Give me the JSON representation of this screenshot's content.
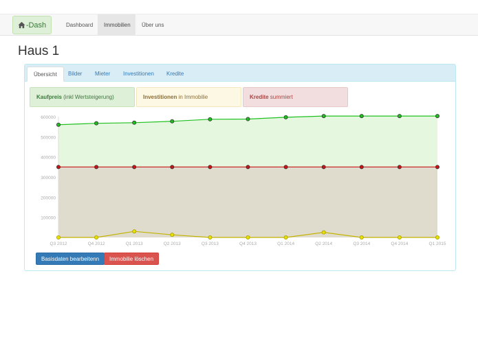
{
  "navbar": {
    "brand_icon": "home-icon",
    "brand_label": "-Dash",
    "links": [
      "Dashboard",
      "Immobilien",
      "Über uns"
    ],
    "active_link": "Immobilien"
  },
  "page": {
    "title": "Haus 1"
  },
  "tabs": [
    "Übersicht",
    "Bilder",
    "Mieter",
    "Investitionen",
    "Kredite"
  ],
  "active_tab": "Übersicht",
  "legend": {
    "kaufpreis": {
      "bold": "Kaufpreis",
      "rest": " (inkl Wertsteigerung)"
    },
    "investitionen": {
      "bold": "Investitionen",
      "rest": " in Immobilie"
    },
    "kredite": {
      "bold": "Kredite",
      "rest": " summiert"
    }
  },
  "buttons": {
    "edit": "Basisdaten bearbeitenn",
    "delete": "Immobilie löschen"
  },
  "colors": {
    "kaufpreis": "#1ec01e",
    "kredite": "#c81414",
    "investitionen": "#e8e000"
  },
  "chart_data": {
    "type": "area",
    "categories": [
      "Q3 2012",
      "Q4 2012",
      "Q1 2013",
      "Q2 2013",
      "Q3 2013",
      "Q4 2013",
      "Q1 2014",
      "Q2 2014",
      "Q3 2014",
      "Q4 2014",
      "Q1 2015"
    ],
    "ylim": [
      0,
      600000
    ],
    "yticks": [
      100000,
      200000,
      300000,
      400000,
      500000,
      600000
    ],
    "grid": false,
    "series": [
      {
        "name": "Kaufpreis",
        "values": [
          560000,
          567000,
          570000,
          577000,
          587000,
          588000,
          597000,
          603000,
          603000,
          603000,
          603000
        ]
      },
      {
        "name": "Kredite",
        "values": [
          350000,
          350000,
          350000,
          350000,
          350000,
          350000,
          350000,
          350000,
          350000,
          350000,
          350000
        ]
      },
      {
        "name": "Investitionen",
        "values": [
          0,
          0,
          30000,
          13000,
          0,
          0,
          0,
          25000,
          0,
          0,
          0
        ]
      }
    ]
  }
}
